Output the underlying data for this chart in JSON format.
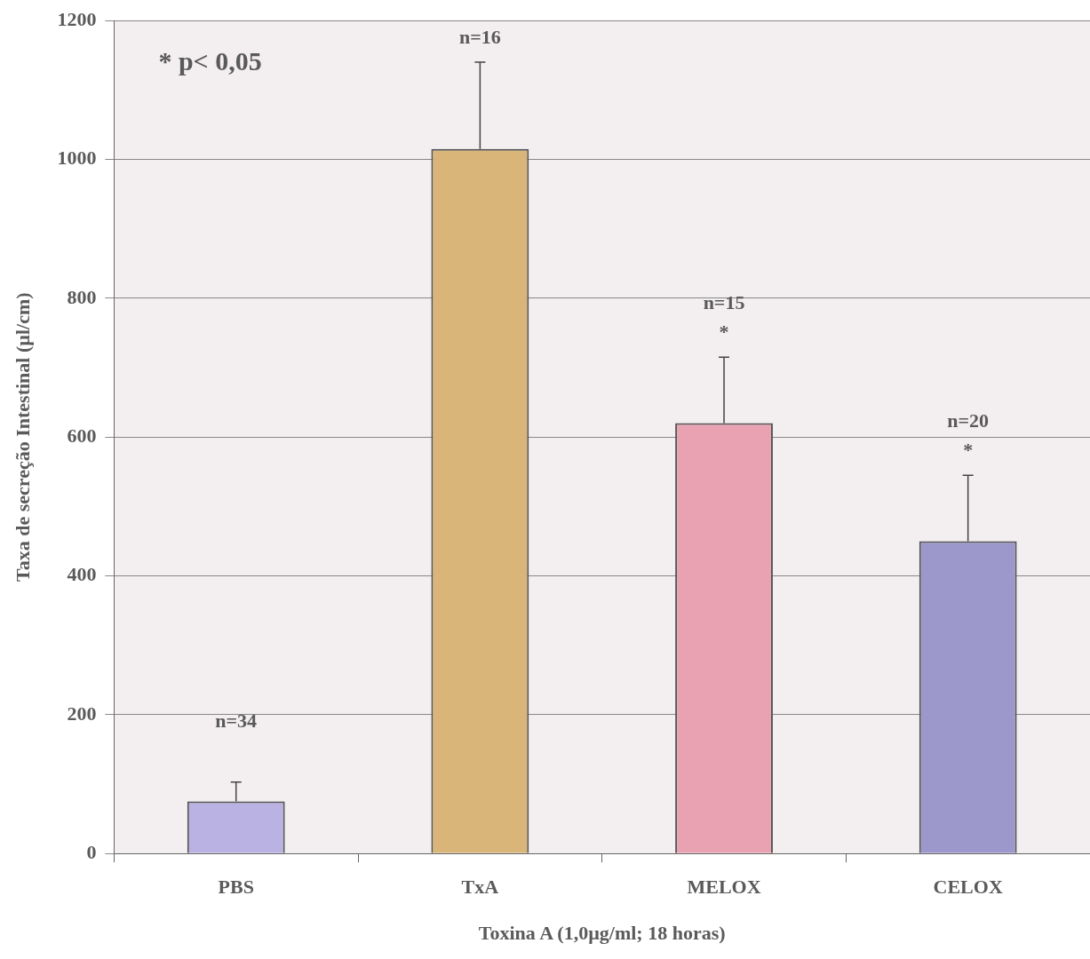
{
  "chart_data": {
    "type": "bar",
    "xlabel": "Toxina A (1,0µg/ml; 18 horas)",
    "ylabel": "Taxa de secreção Intestinal (µl/cm)",
    "categories": [
      "PBS",
      "TxA",
      "MELOX",
      "CELOX"
    ],
    "values": [
      75,
      1015,
      620,
      450
    ],
    "colors": [
      "#b9b2e2",
      "#d9b579",
      "#e9a2b2",
      "#9c98cc"
    ],
    "errors": [
      [
        75,
        103
      ],
      [
        1015,
        1140
      ],
      [
        620,
        715
      ],
      [
        450,
        545
      ]
    ],
    "ylim": [
      0,
      1200
    ],
    "yticks": [
      0,
      200,
      400,
      600,
      800,
      1000,
      1200
    ],
    "grid": "y",
    "legend": false,
    "annotations": [
      "* p< 0,05",
      {
        "text": "n=34",
        "x": "PBS",
        "y": 103
      },
      {
        "text": "n=16",
        "x": "TxA",
        "y": 1140
      },
      {
        "text": "n=15",
        "x": "MELOX",
        "y": 715
      },
      {
        "text": "*",
        "x": "MELOX",
        "y": 715
      },
      {
        "text": "n=20",
        "x": "CELOX",
        "y": 545
      },
      {
        "text": "*",
        "x": "CELOX",
        "y": 545
      }
    ]
  }
}
